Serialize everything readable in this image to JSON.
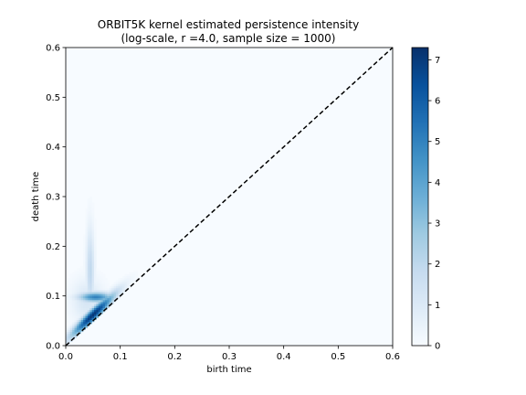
{
  "chart_data": {
    "type": "heatmap",
    "title_lines": [
      "ORBIT5K kernel estimated persistence intensity",
      "(log-scale, r =4.0, sample size = 1000)"
    ],
    "xlabel": "birth time",
    "ylabel": "death time",
    "xlim": [
      0.0,
      0.6
    ],
    "ylim": [
      0.0,
      0.6
    ],
    "x_ticks": [
      "0.0",
      "0.1",
      "0.2",
      "0.3",
      "0.4",
      "0.5",
      "0.6"
    ],
    "y_ticks": [
      "0.0",
      "0.1",
      "0.2",
      "0.3",
      "0.4",
      "0.5",
      "0.6"
    ],
    "colormap": "Blues",
    "colorbar": {
      "range": [
        0,
        7.3
      ],
      "ticks": [
        "0",
        "1",
        "2",
        "3",
        "4",
        "5",
        "6",
        "7"
      ]
    },
    "diagonal": {
      "style": "dashed",
      "color": "#000000",
      "from": [
        0.0,
        0.0
      ],
      "to": [
        0.6,
        0.6
      ]
    },
    "intensity_features": [
      {
        "description": "dense band along diagonal",
        "birth": [
          0.01,
          0.09
        ],
        "death": [
          0.02,
          0.11
        ],
        "peak_value": 7.2
      },
      {
        "description": "vertical streak",
        "birth": 0.045,
        "death": [
          0.05,
          0.25
        ],
        "peak_value": 2.0
      },
      {
        "description": "horizontal arm",
        "birth": [
          0.04,
          0.09
        ],
        "death": 0.1,
        "peak_value": 5.0
      }
    ]
  }
}
